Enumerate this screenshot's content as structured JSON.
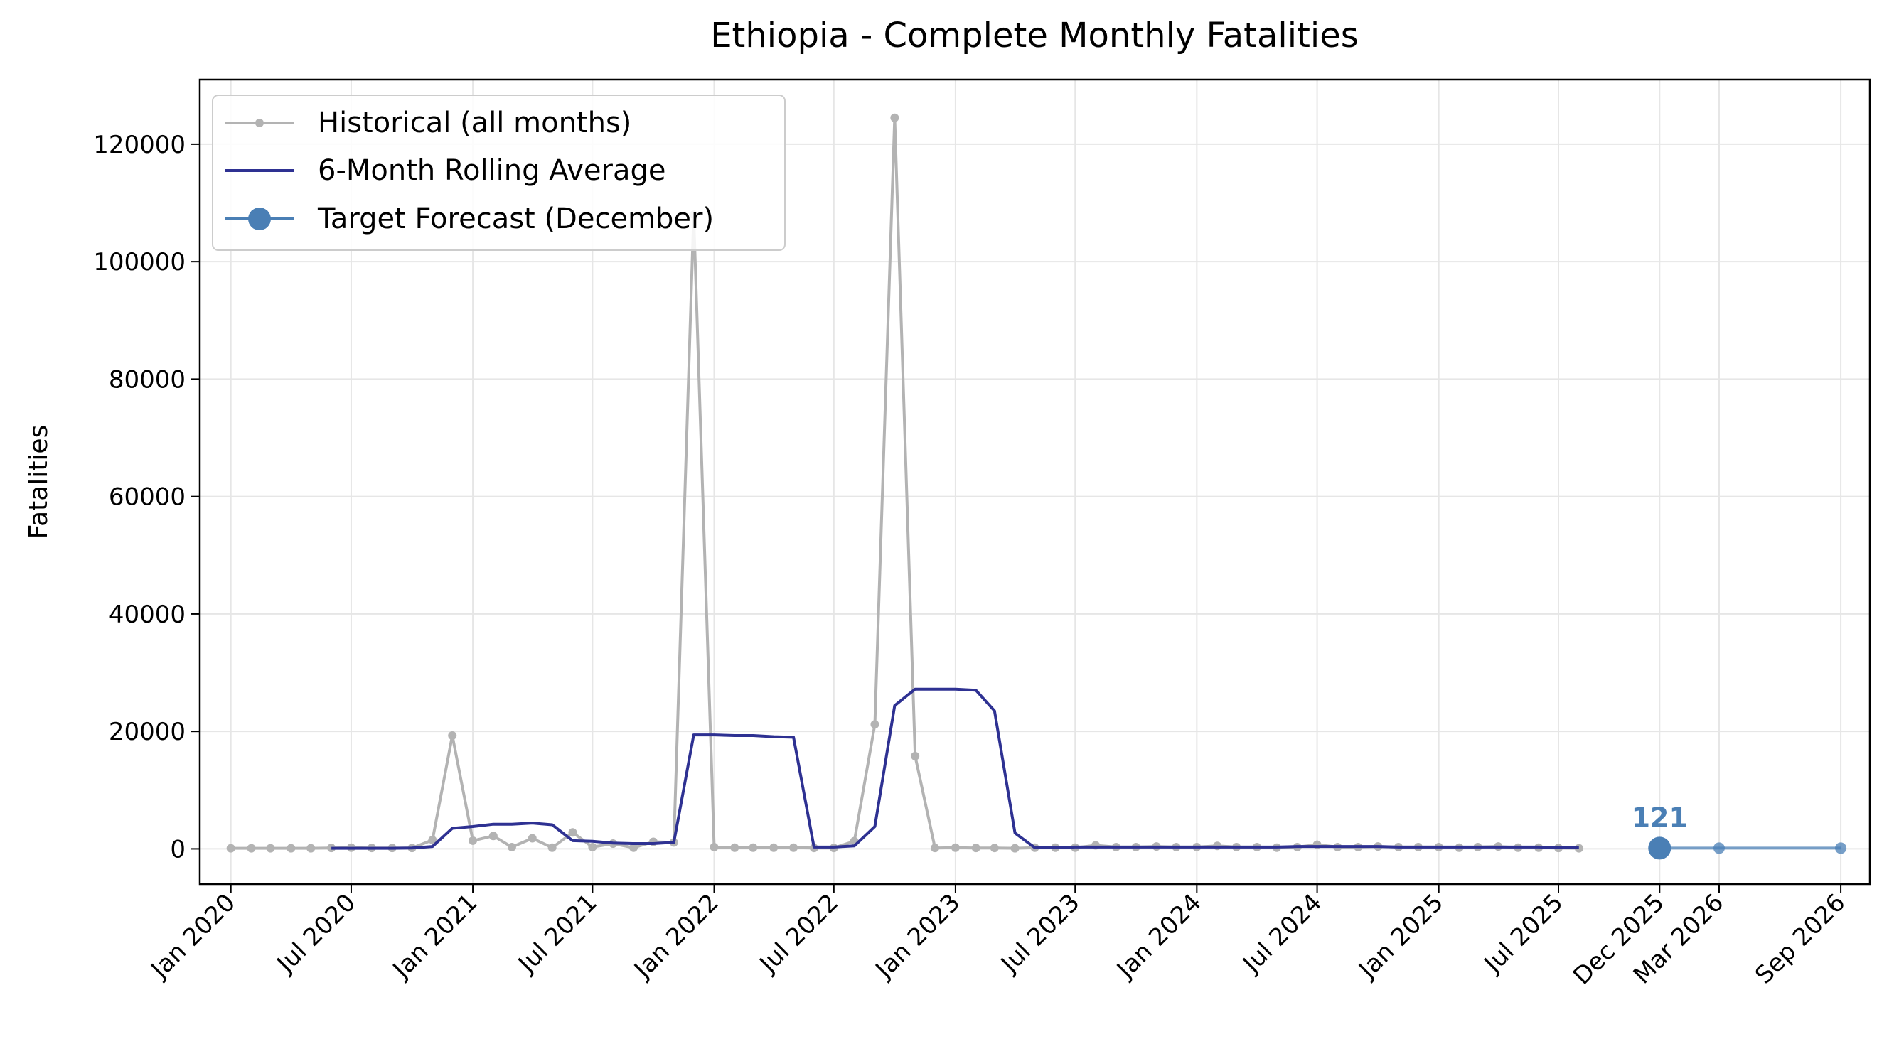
{
  "chart_data": {
    "type": "line",
    "title": "Ethiopia - Complete Monthly Fatalities",
    "xlabel": "",
    "ylabel": "Fatalities",
    "ylim": [
      -6000,
      131000
    ],
    "xlim": [
      "2019-11-15",
      "2026-10-15"
    ],
    "grid": true,
    "legend_position": "top-left",
    "x_ticks": [
      {
        "date": "2020-01-01",
        "label": "Jan 2020"
      },
      {
        "date": "2020-07-01",
        "label": "Jul 2020"
      },
      {
        "date": "2021-01-01",
        "label": "Jan 2021"
      },
      {
        "date": "2021-07-01",
        "label": "Jul 2021"
      },
      {
        "date": "2022-01-01",
        "label": "Jan 2022"
      },
      {
        "date": "2022-07-01",
        "label": "Jul 2022"
      },
      {
        "date": "2023-01-01",
        "label": "Jan 2023"
      },
      {
        "date": "2023-07-01",
        "label": "Jul 2023"
      },
      {
        "date": "2024-01-01",
        "label": "Jan 2024"
      },
      {
        "date": "2024-07-01",
        "label": "Jul 2024"
      },
      {
        "date": "2025-01-01",
        "label": "Jan 2025"
      },
      {
        "date": "2025-07-01",
        "label": "Jul 2025"
      },
      {
        "date": "2025-12-01",
        "label": "Dec 2025"
      },
      {
        "date": "2026-03-01",
        "label": "Mar 2026"
      },
      {
        "date": "2026-09-01",
        "label": "Sep 2026"
      }
    ],
    "y_ticks": [
      0,
      20000,
      40000,
      60000,
      80000,
      100000,
      120000
    ],
    "series": [
      {
        "name": "Historical (all months)",
        "color": "#b3b3b3",
        "marker": "small-circle",
        "x": [
          "2020-01-01",
          "2020-02-01",
          "2020-03-01",
          "2020-04-01",
          "2020-05-01",
          "2020-06-01",
          "2020-07-01",
          "2020-08-01",
          "2020-09-01",
          "2020-10-01",
          "2020-11-01",
          "2020-12-01",
          "2021-01-01",
          "2021-02-01",
          "2021-03-01",
          "2021-04-01",
          "2021-05-01",
          "2021-06-01",
          "2021-07-01",
          "2021-08-01",
          "2021-09-01",
          "2021-10-01",
          "2021-11-01",
          "2021-12-01",
          "2022-01-01",
          "2022-02-01",
          "2022-03-01",
          "2022-04-01",
          "2022-05-01",
          "2022-06-01",
          "2022-07-01",
          "2022-08-01",
          "2022-09-01",
          "2022-10-01",
          "2022-11-01",
          "2022-12-01",
          "2023-01-01",
          "2023-02-01",
          "2023-03-01",
          "2023-04-01",
          "2023-05-01",
          "2023-06-01",
          "2023-07-01",
          "2023-08-01",
          "2023-09-01",
          "2023-10-01",
          "2023-11-01",
          "2023-12-01",
          "2024-01-01",
          "2024-02-01",
          "2024-03-01",
          "2024-04-01",
          "2024-05-01",
          "2024-06-01",
          "2024-07-01",
          "2024-08-01",
          "2024-09-01",
          "2024-10-01",
          "2024-11-01",
          "2024-12-01",
          "2025-01-01",
          "2025-02-01",
          "2025-03-01",
          "2025-04-01",
          "2025-05-01",
          "2025-06-01",
          "2025-07-01",
          "2025-08-01"
        ],
        "values": [
          100,
          100,
          100,
          100,
          100,
          150,
          200,
          150,
          150,
          150,
          1500,
          19300,
          1400,
          2200,
          300,
          1800,
          200,
          2800,
          300,
          900,
          200,
          1200,
          1100,
          108000,
          300,
          200,
          200,
          200,
          200,
          150,
          150,
          1300,
          21200,
          124500,
          15800,
          150,
          200,
          150,
          150,
          100,
          200,
          200,
          200,
          600,
          300,
          300,
          400,
          300,
          300,
          500,
          300,
          300,
          200,
          300,
          700,
          300,
          300,
          400,
          300,
          300,
          300,
          200,
          300,
          400,
          200,
          200,
          150,
          100
        ]
      },
      {
        "name": "6-Month Rolling Average",
        "color": "#2e3192",
        "x": [
          "2020-06-01",
          "2020-07-01",
          "2020-08-01",
          "2020-09-01",
          "2020-10-01",
          "2020-11-01",
          "2020-12-01",
          "2021-01-01",
          "2021-02-01",
          "2021-03-01",
          "2021-04-01",
          "2021-05-01",
          "2021-06-01",
          "2021-07-01",
          "2021-08-01",
          "2021-09-01",
          "2021-10-01",
          "2021-11-01",
          "2021-12-01",
          "2022-01-01",
          "2022-02-01",
          "2022-03-01",
          "2022-04-01",
          "2022-05-01",
          "2022-06-01",
          "2022-07-01",
          "2022-08-01",
          "2022-09-01",
          "2022-10-01",
          "2022-11-01",
          "2022-12-01",
          "2023-01-01",
          "2023-02-01",
          "2023-03-01",
          "2023-04-01",
          "2023-05-01",
          "2023-06-01",
          "2023-07-01",
          "2023-08-01",
          "2023-09-01",
          "2023-10-01",
          "2023-11-01",
          "2023-12-01",
          "2024-01-01",
          "2024-02-01",
          "2024-03-01",
          "2024-04-01",
          "2024-05-01",
          "2024-06-01",
          "2024-07-01",
          "2024-08-01",
          "2024-09-01",
          "2024-10-01",
          "2024-11-01",
          "2024-12-01",
          "2025-01-01",
          "2025-02-01",
          "2025-03-01",
          "2025-04-01",
          "2025-05-01",
          "2025-06-01",
          "2025-07-01",
          "2025-08-01"
        ],
        "values": [
          100,
          100,
          100,
          100,
          150,
          400,
          3500,
          3800,
          4200,
          4200,
          4400,
          4100,
          1400,
          1300,
          1000,
          900,
          900,
          1100,
          19400,
          19400,
          19300,
          19300,
          19100,
          19000,
          300,
          300,
          500,
          3800,
          24400,
          27200,
          27200,
          27200,
          27000,
          23500,
          2700,
          200,
          200,
          300,
          300,
          300,
          300,
          300,
          300,
          300,
          300,
          300,
          300,
          300,
          400,
          400,
          400,
          400,
          400,
          300,
          300,
          300,
          300,
          300,
          300,
          300,
          300,
          200,
          200
        ]
      },
      {
        "name": "Target Forecast (December)",
        "color": "#4a7fb5",
        "x": [
          "2025-12-01",
          "2026-03-01",
          "2026-09-01"
        ],
        "values": [
          121,
          121,
          121
        ],
        "annotation": "121"
      }
    ]
  }
}
